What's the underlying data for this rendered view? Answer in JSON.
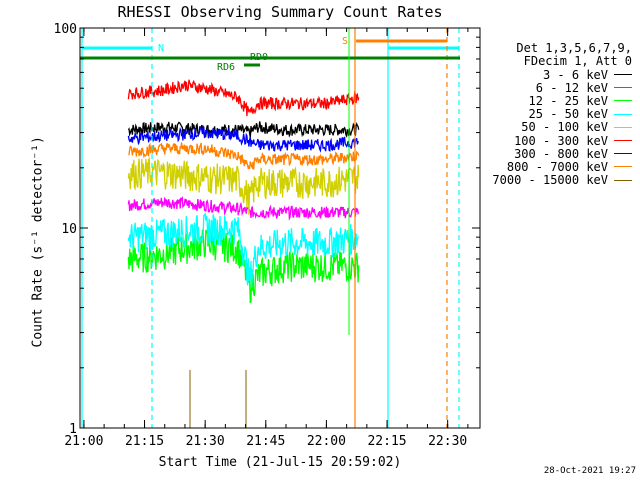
{
  "chart_data": {
    "type": "line",
    "title": "RHESSI Observing Summary Count Rates",
    "xlabel": "Start Time (21-Jul-15 20:59:02)",
    "ylabel": "Count Rate (s⁻¹ detector⁻¹)",
    "yscale": "log",
    "ylim": [
      1,
      100
    ],
    "xlim": [
      "20:59:02",
      "22:38:00"
    ],
    "xticks": [
      "21:00",
      "21:15",
      "21:30",
      "21:45",
      "22:00",
      "22:15",
      "22:30"
    ],
    "yticks": [
      "1",
      "10",
      "100"
    ],
    "legend_header": [
      "Det 1,3,5,6,7,9,",
      "FDecim 1, Att 0"
    ],
    "legend_position": "right",
    "series": [
      {
        "name": "3 - 6 keV",
        "color": "#000000",
        "segments": [
          {
            "x": [
              "21:11",
              "21:20",
              "21:30",
              "21:38",
              "21:41",
              "21:43",
              "21:50",
              "22:00",
              "22:08"
            ],
            "y": [
              31,
              32,
              31,
              31,
              30,
              32,
              31,
              31,
              31
            ]
          }
        ]
      },
      {
        "name": "6 - 12 keV",
        "color": "#ff00ff",
        "segments": [
          {
            "x": [
              "21:11",
              "21:20",
              "21:30",
              "21:38",
              "21:41",
              "21:43",
              "21:50",
              "22:00",
              "22:08"
            ],
            "y": [
              13,
              13.5,
              13,
              12.5,
              12,
              12,
              12,
              12,
              12
            ]
          }
        ]
      },
      {
        "name": "12 - 25 keV",
        "color": "#00ff00",
        "segments": [
          {
            "x": [
              "21:11",
              "21:20",
              "21:30",
              "21:38",
              "21:41",
              "21:42",
              "21:44",
              "21:50",
              "22:00",
              "22:08"
            ],
            "y": [
              7,
              7.5,
              8.5,
              8,
              5,
              5.5,
              6,
              6.5,
              6.5,
              6.5
            ]
          }
        ]
      },
      {
        "name": "25 - 50 keV",
        "color": "#00ffff",
        "segments": [
          {
            "x": [
              "21:11",
              "21:20",
              "21:30",
              "21:38",
              "21:41",
              "21:43",
              "21:50",
              "22:00",
              "22:08"
            ],
            "y": [
              9,
              9.5,
              10,
              10,
              5.5,
              8,
              8.5,
              8.5,
              9
            ]
          }
        ]
      },
      {
        "name": "50 - 100 keV",
        "color": "#d0d000",
        "segments": [
          {
            "x": [
              "21:11",
              "21:20",
              "21:30",
              "21:38",
              "21:41",
              "21:43",
              "21:50",
              "22:00",
              "22:08"
            ],
            "y": [
              19,
              19,
              18,
              17.5,
              14,
              17,
              17,
              17,
              18
            ]
          }
        ]
      },
      {
        "name": "100 - 300 keV",
        "color": "#ff0000",
        "segments": [
          {
            "x": [
              "21:11",
              "21:20",
              "21:25",
              "21:30",
              "21:38",
              "21:41",
              "21:43",
              "21:50",
              "22:00",
              "22:08"
            ],
            "y": [
              47,
              49,
              52,
              50,
              45,
              37,
              42,
              42,
              42,
              45
            ]
          }
        ]
      },
      {
        "name": "300 - 800 keV",
        "color": "#0000ff",
        "segments": [
          {
            "x": [
              "21:11",
              "21:20",
              "21:30",
              "21:38",
              "21:41",
              "21:43",
              "21:50",
              "22:00",
              "22:08"
            ],
            "y": [
              28,
              29,
              30,
              29,
              27,
              26,
              26,
              26,
              27
            ]
          }
        ]
      },
      {
        "name": "800 - 7000 keV",
        "color": "#ff8000",
        "segments": [
          {
            "x": [
              "21:11",
              "21:20",
              "21:30",
              "21:38",
              "21:41",
              "21:43",
              "21:50",
              "22:00",
              "22:08"
            ],
            "y": [
              24,
              25,
              25,
              23,
              20,
              22,
              22,
              22,
              23
            ]
          }
        ]
      },
      {
        "name": "7000 - 15000 keV",
        "color": "#806000",
        "segments": []
      }
    ],
    "annotations": [
      {
        "text": "N",
        "color": "#00ffff"
      },
      {
        "text": "S",
        "color": "#ff8000"
      },
      {
        "text": "RD0",
        "color": "#008000"
      },
      {
        "text": "RD6",
        "color": "#008000"
      }
    ],
    "footer": "28-Oct-2021 19:27"
  }
}
